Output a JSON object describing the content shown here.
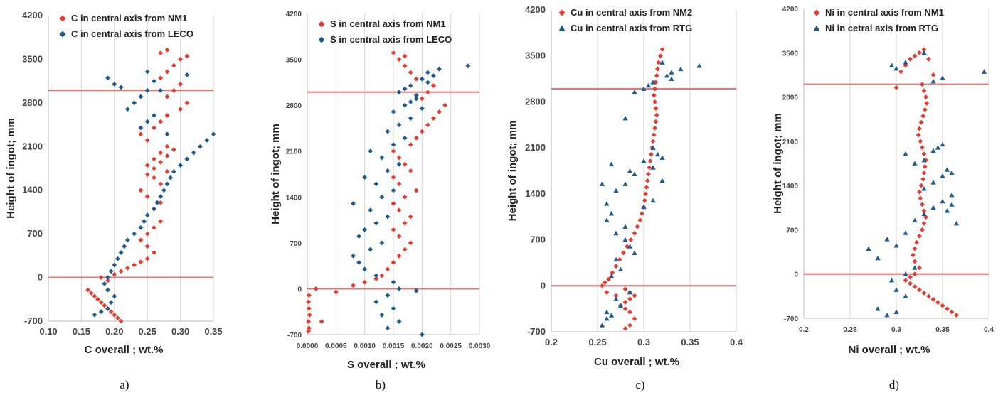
{
  "chart_data": [
    {
      "type": "scatter",
      "panel_label": "a)",
      "xlabel": "C overall ; wt.%",
      "ylabel": "Height of ingot;  mm",
      "xlim": [
        0.1,
        0.35
      ],
      "ylim": [
        -700,
        4200
      ],
      "x_ticks": [
        "0.10",
        "0.15",
        "0.20",
        "0.25",
        "0.30",
        "0.35"
      ],
      "y_ticks": [
        "-700",
        "0",
        "700",
        "1400",
        "2100",
        "2800",
        "3500",
        "4200"
      ],
      "grid": "vertical",
      "legend": "top-left",
      "ref_lines_y": [
        0,
        3000
      ],
      "series": [
        {
          "name": "C in central axis from NM1",
          "marker": "diamond",
          "color": "#e63b30",
          "x": [
            0.16,
            0.165,
            0.17,
            0.175,
            0.18,
            0.185,
            0.19,
            0.195,
            0.2,
            0.205,
            0.21,
            0.19,
            0.18,
            0.2,
            0.21,
            0.22,
            0.23,
            0.24,
            0.25,
            0.26,
            0.25,
            0.24,
            0.25,
            0.26,
            0.27,
            0.25,
            0.26,
            0.27,
            0.25,
            0.24,
            0.27,
            0.26,
            0.28,
            0.25,
            0.26,
            0.27,
            0.28,
            0.25,
            0.24,
            0.26,
            0.27,
            0.28,
            0.25,
            0.26,
            0.27,
            0.28,
            0.29,
            0.3,
            0.31,
            0.28,
            0.29,
            0.3,
            0.27,
            0.28,
            0.29,
            0.3,
            0.31,
            0.27,
            0.28
          ],
          "y": [
            -200,
            -250,
            -300,
            -350,
            -400,
            -450,
            -500,
            -550,
            -600,
            -650,
            -700,
            -50,
            0,
            50,
            100,
            150,
            200,
            250,
            300,
            400,
            500,
            600,
            700,
            800,
            900,
            1000,
            1100,
            1200,
            1300,
            1400,
            1500,
            1600,
            1700,
            1800,
            1900,
            2000,
            2100,
            2200,
            2300,
            2400,
            2500,
            2600,
            1650,
            1750,
            1850,
            1950,
            2050,
            2700,
            2800,
            2900,
            3000,
            3100,
            3200,
            3300,
            3400,
            3500,
            3550,
            3600,
            3650
          ],
          "note": ""
        },
        {
          "name": "C in central axis from LECO",
          "marker": "diamond",
          "color": "#1f5a8c",
          "x": [
            0.17,
            0.18,
            0.19,
            0.195,
            0.2,
            0.19,
            0.185,
            0.19,
            0.195,
            0.2,
            0.205,
            0.21,
            0.215,
            0.22,
            0.23,
            0.24,
            0.245,
            0.25,
            0.26,
            0.265,
            0.27,
            0.275,
            0.28,
            0.285,
            0.29,
            0.3,
            0.31,
            0.32,
            0.33,
            0.34,
            0.35,
            0.24,
            0.25,
            0.26,
            0.22,
            0.23,
            0.24,
            0.25,
            0.21,
            0.2,
            0.19,
            0.25,
            0.31,
            0.26,
            0.27,
            0.28
          ],
          "y": [
            -600,
            -550,
            -500,
            -400,
            -300,
            -200,
            -100,
            0,
            100,
            200,
            300,
            400,
            500,
            600,
            700,
            800,
            900,
            1000,
            1100,
            1200,
            1300,
            1400,
            1500,
            1600,
            1700,
            1800,
            1900,
            2000,
            2100,
            2200,
            2300,
            2400,
            2500,
            2600,
            2700,
            2800,
            2900,
            3000,
            3050,
            3100,
            3200,
            3300,
            3250,
            3150,
            3000,
            2300
          ],
          "note": ""
        }
      ]
    },
    {
      "type": "scatter",
      "panel_label": "b)",
      "xlabel": "S overall ; wt.%",
      "ylabel": "Height of ingot;  mm",
      "xlim": [
        0.0,
        0.003
      ],
      "ylim": [
        -700,
        4200
      ],
      "x_ticks": [
        "0.0000",
        "0.0005",
        "0.0010",
        "0.0015",
        "0.0020",
        "0.0025",
        "0.0030"
      ],
      "y_ticks": [
        "-700",
        "0",
        "700",
        "1400",
        "2100",
        "2800",
        "3500",
        "4200"
      ],
      "grid": "vertical",
      "legend": "top-left",
      "ref_lines_y": [
        0,
        3000
      ],
      "series": [
        {
          "name": "S in central axis from NM1",
          "marker": "diamond",
          "color": "#e63b30",
          "x": [
            2e-05,
            3e-05,
            2e-05,
            4e-05,
            3e-05,
            2e-05,
            3e-05,
            0.00015,
            0.00025,
            0.0005,
            0.0008,
            0.001,
            0.0012,
            0.0013,
            0.0014,
            0.0015,
            0.0016,
            0.0017,
            0.0018,
            0.0016,
            0.0015,
            0.0017,
            0.0018,
            0.0016,
            0.0015,
            0.0017,
            0.0019,
            0.0016,
            0.0015,
            0.0018,
            0.0017,
            0.0016,
            0.0015,
            0.0018,
            0.0019,
            0.002,
            0.0021,
            0.0022,
            0.0023,
            0.0024,
            0.002,
            0.0021,
            0.0022,
            0.0019,
            0.0018,
            0.0017,
            0.0016,
            0.0015,
            0.0017
          ],
          "y": [
            -650,
            -600,
            -500,
            -400,
            -300,
            -200,
            -100,
            0,
            -500,
            -50,
            50,
            100,
            150,
            200,
            300,
            400,
            500,
            600,
            700,
            800,
            900,
            1000,
            1100,
            1200,
            1300,
            1400,
            1500,
            1600,
            1700,
            1800,
            1900,
            2000,
            2100,
            2200,
            2300,
            2400,
            2500,
            2600,
            2700,
            2800,
            2900,
            3000,
            3100,
            3200,
            3300,
            3400,
            3500,
            3600,
            3550
          ],
          "note": ""
        },
        {
          "name": "S in central axis from LECO",
          "marker": "diamond",
          "color": "#1f5a8c",
          "x": [
            0.0014,
            0.0016,
            0.0013,
            0.0015,
            0.0012,
            0.0014,
            0.0016,
            0.0015,
            0.0012,
            0.001,
            0.0009,
            0.0008,
            0.0011,
            0.0013,
            0.0009,
            0.001,
            0.0012,
            0.0014,
            0.0011,
            0.0008,
            0.0013,
            0.0015,
            0.0012,
            0.001,
            0.0014,
            0.0016,
            0.0013,
            0.0011,
            0.0015,
            0.0017,
            0.0014,
            0.0016,
            0.0018,
            0.0015,
            0.0017,
            0.0019,
            0.0016,
            0.0018,
            0.002,
            0.0017,
            0.0019,
            0.0021,
            0.0018,
            0.002,
            0.0022,
            0.0021,
            0.0023,
            0.0028,
            0.002,
            0.0019
          ],
          "y": [
            -600,
            -500,
            -400,
            -300,
            -200,
            -100,
            0,
            100,
            200,
            300,
            400,
            500,
            600,
            700,
            800,
            900,
            1000,
            1100,
            1200,
            1300,
            1400,
            1500,
            1600,
            1700,
            1800,
            1900,
            2000,
            2100,
            2200,
            2300,
            2400,
            2500,
            2600,
            2700,
            2800,
            2900,
            3000,
            3100,
            3200,
            3050,
            2950,
            3150,
            2850,
            2750,
            3250,
            3300,
            3350,
            3400,
            -700,
            -30
          ],
          "note": ""
        }
      ]
    },
    {
      "type": "scatter",
      "panel_label": "c)",
      "xlabel": "Cu overall ; wt.%",
      "ylabel": "Height of ingot;  mm",
      "xlim": [
        0.2,
        0.4
      ],
      "ylim": [
        -700,
        4200
      ],
      "x_ticks": [
        "0.2",
        "0.25",
        "0.3",
        "0.35",
        "0.4"
      ],
      "y_ticks": [
        "-700",
        "0",
        "700",
        "1400",
        "2100",
        "2800",
        "3500",
        "4200"
      ],
      "grid": "vertical",
      "legend": "top-left",
      "ref_lines_y": [
        0,
        3000
      ],
      "series": [
        {
          "name": "Cu in central axis from NM2",
          "marker": "diamond",
          "color": "#e63b30",
          "x": [
            0.28,
            0.285,
            0.29,
            0.285,
            0.28,
            0.275,
            0.28,
            0.285,
            0.29,
            0.285,
            0.28,
            0.27,
            0.26,
            0.255,
            0.258,
            0.262,
            0.266,
            0.27,
            0.274,
            0.278,
            0.282,
            0.286,
            0.29,
            0.293,
            0.296,
            0.298,
            0.3,
            0.301,
            0.302,
            0.303,
            0.304,
            0.305,
            0.306,
            0.307,
            0.308,
            0.309,
            0.31,
            0.311,
            0.312,
            0.313,
            0.314,
            0.313,
            0.312,
            0.311,
            0.312,
            0.313,
            0.314,
            0.315,
            0.316,
            0.318,
            0.32
          ],
          "y": [
            -650,
            -600,
            -500,
            -400,
            -350,
            -300,
            -250,
            -200,
            -150,
            -100,
            -50,
            -150,
            -100,
            0,
            50,
            100,
            200,
            300,
            400,
            500,
            600,
            700,
            800,
            900,
            1000,
            1100,
            1200,
            1300,
            1400,
            1500,
            1600,
            1700,
            1800,
            1900,
            2000,
            2100,
            2200,
            2300,
            2400,
            2500,
            2600,
            2700,
            2800,
            2900,
            3000,
            3100,
            3200,
            3300,
            3400,
            3500,
            3600
          ],
          "note": ""
        },
        {
          "name": "Cu in central axis from RTG",
          "marker": "triangle",
          "color": "#1f5a8c",
          "x": [
            0.255,
            0.26,
            0.265,
            0.26,
            0.275,
            0.27,
            0.285,
            0.265,
            0.275,
            0.27,
            0.29,
            0.285,
            0.28,
            0.27,
            0.28,
            0.26,
            0.265,
            0.3,
            0.31,
            0.28,
            0.32,
            0.29,
            0.31,
            0.3,
            0.32,
            0.315,
            0.31,
            0.28,
            0.34,
            0.33,
            0.31,
            0.36,
            0.32,
            0.325,
            0.33,
            0.305,
            0.3,
            0.29,
            0.285,
            0.27,
            0.26,
            0.255,
            0.265
          ],
          "y": [
            -600,
            -500,
            -450,
            -400,
            -300,
            -200,
            -100,
            150,
            250,
            400,
            500,
            600,
            700,
            800,
            900,
            1000,
            1100,
            1200,
            1300,
            1550,
            1600,
            1700,
            1800,
            1900,
            1950,
            2000,
            2100,
            2550,
            3300,
            3150,
            3100,
            3350,
            3400,
            3200,
            3250,
            3050,
            3000,
            2950,
            1750,
            1450,
            1250,
            1550,
            1850
          ],
          "note": ""
        }
      ]
    },
    {
      "type": "scatter",
      "panel_label": "d)",
      "xlabel": "Ni overall ; wt.%",
      "ylabel": "Height of ingot;  mm",
      "xlim": [
        0.2,
        0.4
      ],
      "ylim": [
        -700,
        4200
      ],
      "x_ticks": [
        "0.2",
        "0.25",
        "0.3",
        "0.35",
        "0.4"
      ],
      "y_ticks": [
        "-700",
        "0",
        "700",
        "1400",
        "2100",
        "2800",
        "3500",
        "4200"
      ],
      "grid": "vertical",
      "legend": "top-left",
      "ref_lines_y": [
        0,
        3000
      ],
      "series": [
        {
          "name": "Ni in central axis from NM1",
          "marker": "diamond",
          "color": "#e63b30",
          "x": [
            0.365,
            0.36,
            0.355,
            0.35,
            0.345,
            0.34,
            0.335,
            0.33,
            0.325,
            0.32,
            0.315,
            0.31,
            0.315,
            0.32,
            0.325,
            0.32,
            0.318,
            0.32,
            0.322,
            0.325,
            0.328,
            0.33,
            0.332,
            0.33,
            0.328,
            0.326,
            0.325,
            0.327,
            0.329,
            0.33,
            0.331,
            0.332,
            0.33,
            0.328,
            0.326,
            0.324,
            0.325,
            0.327,
            0.329,
            0.331,
            0.333,
            0.332,
            0.33,
            0.328,
            0.3,
            0.305,
            0.31,
            0.315,
            0.32,
            0.325,
            0.33,
            0.335,
            0.34
          ],
          "y": [
            -650,
            -600,
            -550,
            -500,
            -450,
            -400,
            -350,
            -300,
            -250,
            -200,
            -150,
            -100,
            -50,
            0,
            100,
            200,
            300,
            400,
            500,
            600,
            700,
            800,
            900,
            1000,
            1100,
            1200,
            1300,
            1400,
            1500,
            1600,
            1700,
            1800,
            1900,
            2000,
            2100,
            2200,
            2300,
            2400,
            2500,
            2600,
            2700,
            2800,
            2900,
            3000,
            2950,
            3200,
            3300,
            3400,
            3450,
            3500,
            3550,
            3400,
            3150
          ],
          "note": ""
        },
        {
          "name": "Ni in cetral axis from RTG",
          "marker": "triangle",
          "color": "#1f5a8c",
          "x": [
            0.28,
            0.29,
            0.3,
            0.31,
            0.3,
            0.295,
            0.31,
            0.32,
            0.27,
            0.28,
            0.29,
            0.3,
            0.31,
            0.32,
            0.33,
            0.34,
            0.35,
            0.36,
            0.365,
            0.33,
            0.34,
            0.35,
            0.355,
            0.36,
            0.31,
            0.32,
            0.33,
            0.34,
            0.345,
            0.35,
            0.355,
            0.36,
            0.34,
            0.35,
            0.395,
            0.3,
            0.295,
            0.31,
            0.33
          ],
          "y": [
            -550,
            -650,
            -600,
            -350,
            -250,
            -100,
            0,
            100,
            400,
            250,
            550,
            450,
            650,
            850,
            950,
            1050,
            1150,
            1250,
            800,
            1350,
            1450,
            1550,
            1650,
            1600,
            1900,
            1750,
            1800,
            1950,
            2000,
            2050,
            1000,
            1100,
            3050,
            3100,
            3200,
            3250,
            3300,
            3350,
            3500
          ],
          "note": ""
        }
      ]
    }
  ]
}
